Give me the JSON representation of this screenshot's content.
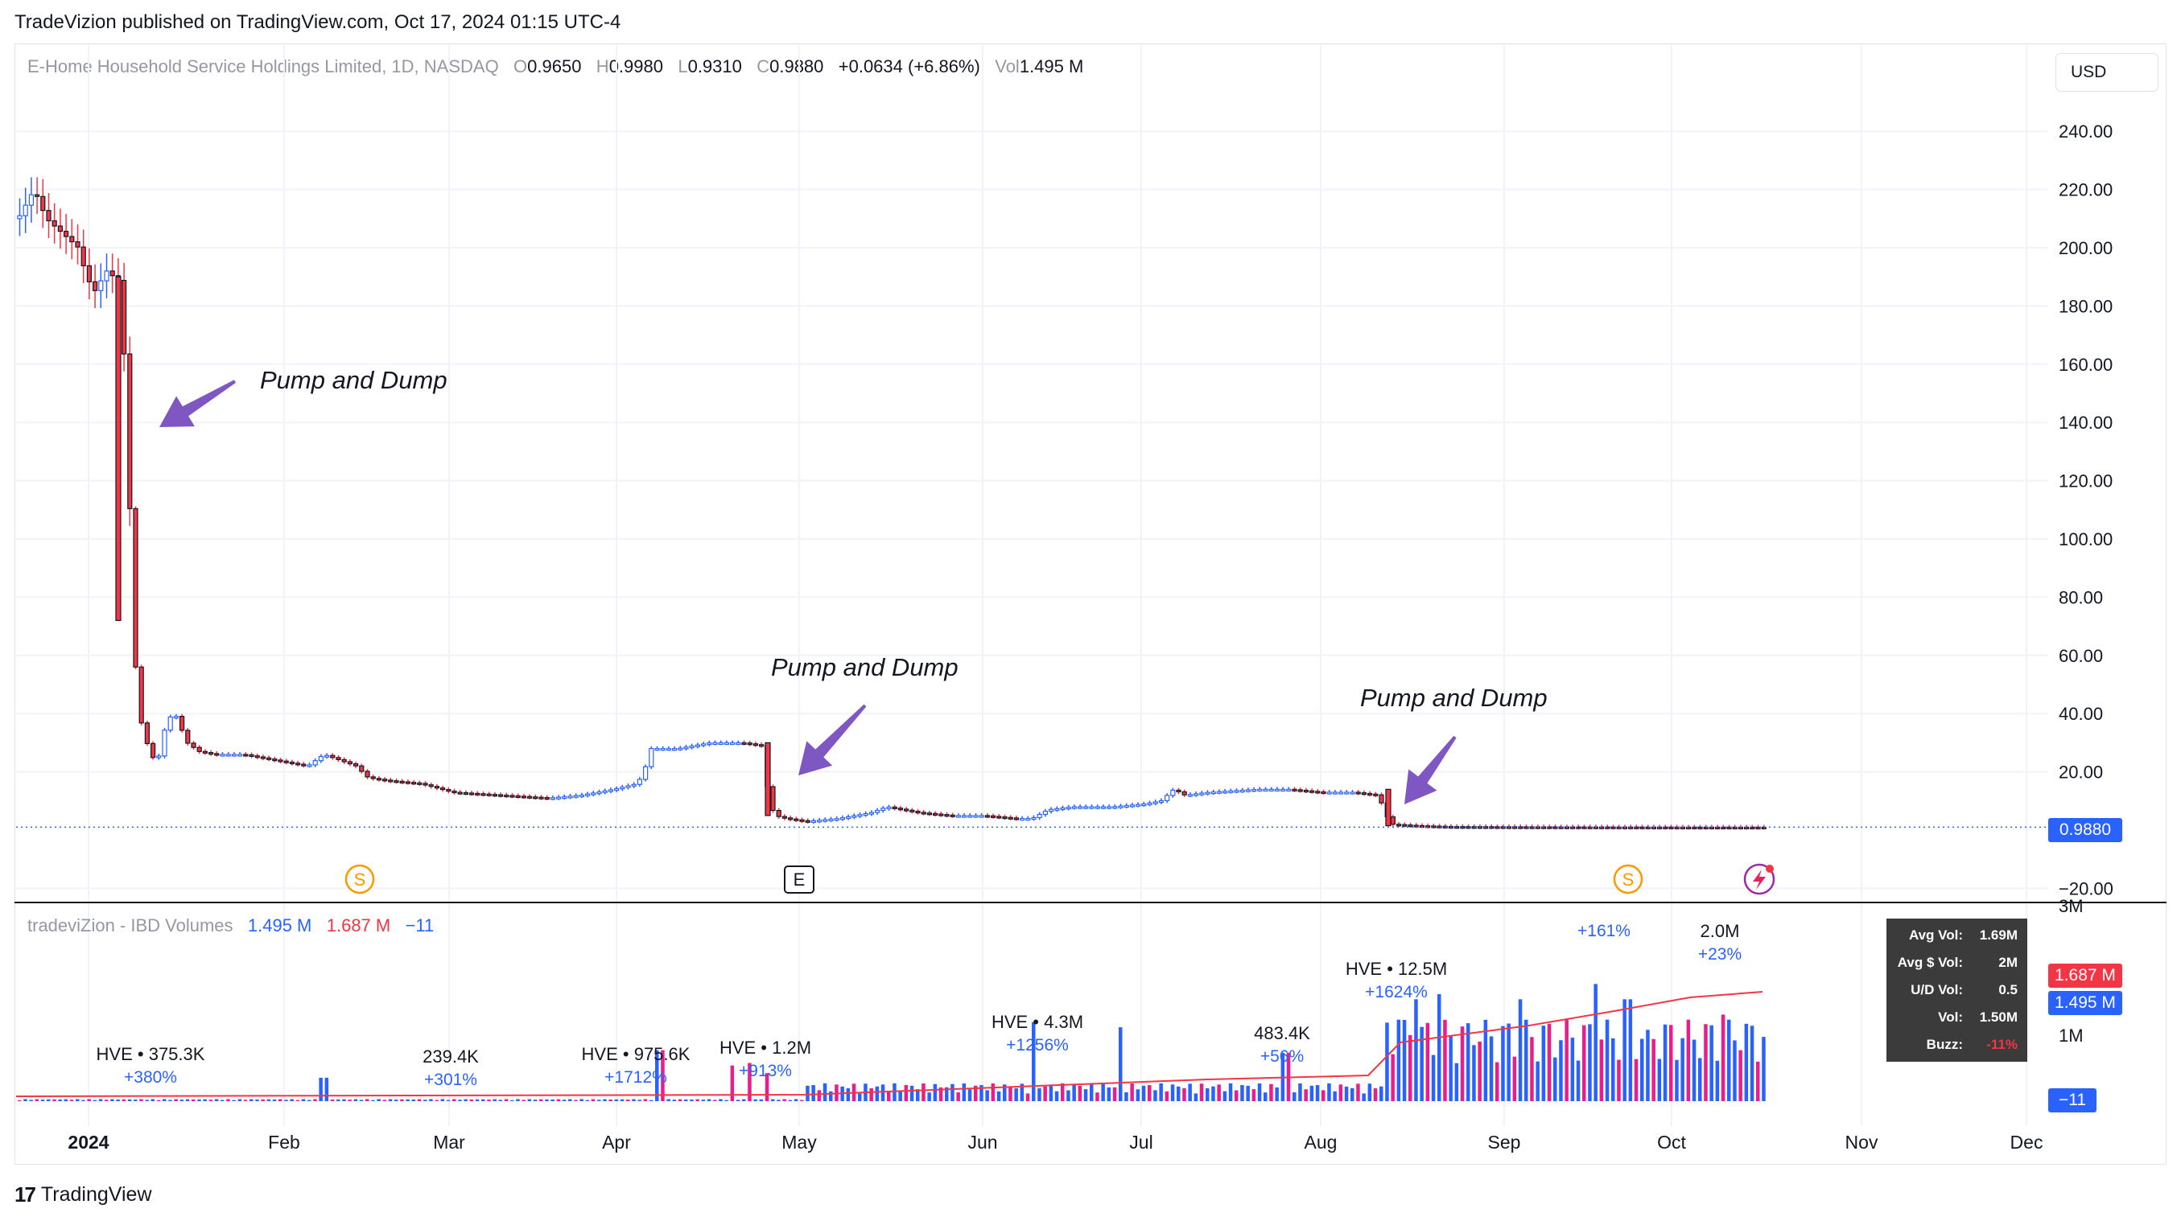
{
  "publisher": "TradeVizion published on TradingView.com, Oct 17, 2024 01:15 UTC-4",
  "legend": {
    "symbol": "E-Home Household Service Holdings Limited, 1D, NASDAQ",
    "o_label": "O",
    "o": "0.9650",
    "h_label": "H",
    "h": "0.9980",
    "l_label": "L",
    "l": "0.9310",
    "c_label": "C",
    "c": "0.9880",
    "change": "+0.0634 (+6.86%)",
    "vol_label": "Vol",
    "vol": "1.495 M"
  },
  "currency": "USD",
  "price_axis": [
    "240.00",
    "220.00",
    "200.00",
    "180.00",
    "160.00",
    "140.00",
    "120.00",
    "100.00",
    "80.00",
    "60.00",
    "40.00",
    "20.00",
    "−20.00"
  ],
  "last_price": "0.9880",
  "annotations": [
    "Pump and Dump",
    "Pump and Dump",
    "Pump and Dump"
  ],
  "event_markers": {
    "split": "S",
    "earnings": "E"
  },
  "volume_pane": {
    "title": "tradeviZion - IBD Volumes",
    "current": "1.495 M",
    "average": "1.687 M",
    "updown": "−11",
    "axis": [
      "3M",
      "1M"
    ],
    "hve_labels": [
      {
        "line1": "HVE • 375.3K",
        "line2": "+380%"
      },
      {
        "line1": "239.4K",
        "line2": "+301%"
      },
      {
        "line1": "HVE • 975.6K",
        "line2": "+1712%"
      },
      {
        "line1": "HVE • 1.2M",
        "line2": "+913%"
      },
      {
        "line1": "HVE • 4.3M",
        "line2": "+1256%"
      },
      {
        "line1": "483.4K",
        "line2": "+56%"
      },
      {
        "line1": "HVE • 12.5M",
        "line2": "+1624%"
      },
      {
        "line1": "",
        "line2": "+161%"
      },
      {
        "line1": "2.0M",
        "line2": "+23%"
      }
    ],
    "stats": [
      {
        "label": "Avg Vol:",
        "value": "1.69M"
      },
      {
        "label": "Avg $ Vol:",
        "value": "2M"
      },
      {
        "label": "U/D Vol:",
        "value": "0.5"
      },
      {
        "label": "Vol:",
        "value": "1.50M"
      },
      {
        "label": "Buzz:",
        "value": "-11%"
      }
    ],
    "pill_avg": "1.687 M",
    "pill_cur": "1.495 M",
    "pill_ud": "−11"
  },
  "time_axis": [
    "2024",
    "Feb",
    "Mar",
    "Apr",
    "May",
    "Jun",
    "Jul",
    "Aug",
    "Sep",
    "Oct",
    "Nov",
    "Dec"
  ],
  "footer": {
    "logo": "17",
    "brand": "TradingView"
  },
  "colors": {
    "up": "#2962ff",
    "down": "#f23645",
    "vol_down": "#e91e8c",
    "accent": "#7e57c2",
    "split": "#ff9800"
  },
  "chart_data": {
    "type": "candlestick",
    "symbol": "E-Home Household Service Holdings Limited",
    "interval": "1D",
    "ylim": [
      -20,
      250
    ],
    "close_series": [
      {
        "date": "2023-12-20",
        "close": 210
      },
      {
        "date": "2023-12-27",
        "close": 215
      },
      {
        "date": "2024-01-03",
        "close": 200
      },
      {
        "date": "2024-01-08",
        "close": 188
      },
      {
        "date": "2024-01-09",
        "close": 72
      },
      {
        "date": "2024-01-10",
        "close": 40
      },
      {
        "date": "2024-01-12",
        "close": 22
      },
      {
        "date": "2024-01-17",
        "close": 40
      },
      {
        "date": "2024-01-22",
        "close": 27
      },
      {
        "date": "2024-02-01",
        "close": 25
      },
      {
        "date": "2024-02-15",
        "close": 25
      },
      {
        "date": "2024-03-01",
        "close": 15
      },
      {
        "date": "2024-03-15",
        "close": 12
      },
      {
        "date": "2024-04-01",
        "close": 13
      },
      {
        "date": "2024-04-08",
        "close": 28
      },
      {
        "date": "2024-04-22",
        "close": 29
      },
      {
        "date": "2024-04-29",
        "close": 5
      },
      {
        "date": "2024-05-15",
        "close": 7
      },
      {
        "date": "2024-06-03",
        "close": 5
      },
      {
        "date": "2024-06-17",
        "close": 8
      },
      {
        "date": "2024-07-08",
        "close": 12
      },
      {
        "date": "2024-07-29",
        "close": 15
      },
      {
        "date": "2024-08-09",
        "close": 14
      },
      {
        "date": "2024-08-12",
        "close": 1.5
      },
      {
        "date": "2024-09-03",
        "close": 1.1
      },
      {
        "date": "2024-10-16",
        "close": 0.988
      }
    ]
  }
}
